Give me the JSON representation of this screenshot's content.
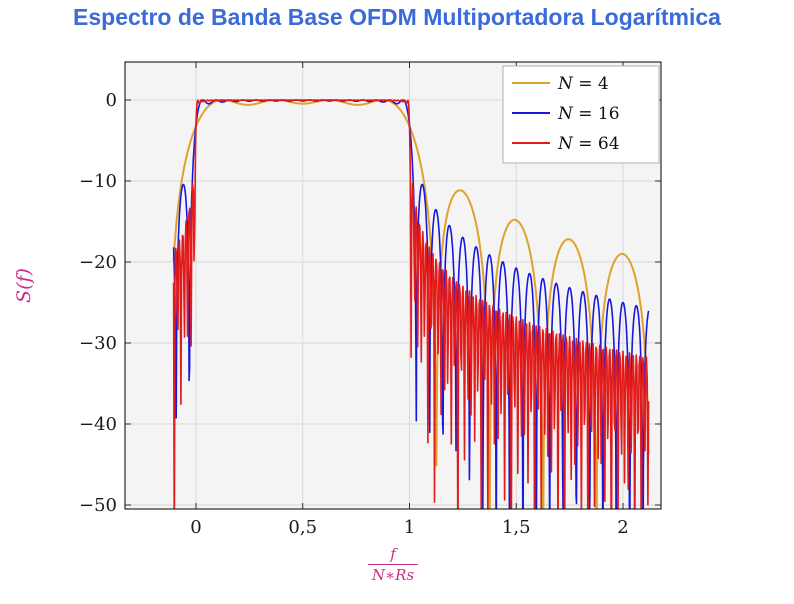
{
  "title": "Espectro de Banda Base OFDM Multiportadora Logarítmica",
  "colors": {
    "title": "#3b6bd6",
    "axis_label": "#cf2e86",
    "grid": "#d9d9d9",
    "plot_bg": "#f4f4f4",
    "axis": "#000000",
    "tick_text": "#1a1a1a",
    "legend_border": "#b0b0b0",
    "legend_bg": "#ffffff"
  },
  "chart_data": {
    "type": "line",
    "title": "Espectro de Banda Base OFDM Multiportadora Logarítmica",
    "xlabel": "f/(N*Rs)",
    "xlabel_numerator": "f",
    "xlabel_denominator": "N∗Rs",
    "ylabel": "S(f)",
    "xlim": [
      -0.33,
      2.18
    ],
    "ylim": [
      -50.5,
      4.7
    ],
    "domain": [
      -0.105,
      2.12
    ],
    "grid": true,
    "x_ticks": [
      {
        "v": 0,
        "label": "0"
      },
      {
        "v": 0.5,
        "label": "0,5"
      },
      {
        "v": 1,
        "label": "1"
      },
      {
        "v": 1.5,
        "label": "1,5"
      },
      {
        "v": 2,
        "label": "2"
      }
    ],
    "y_ticks": [
      {
        "v": 0,
        "label": "0"
      },
      {
        "v": -10,
        "label": "−10"
      },
      {
        "v": -20,
        "label": "−20"
      },
      {
        "v": -30,
        "label": "−30"
      },
      {
        "v": -40,
        "label": "−40"
      },
      {
        "v": -50,
        "label": "−50"
      }
    ],
    "legend": {
      "position": "top-right",
      "entries": [
        "N = 4",
        "N = 16",
        "N = 64"
      ]
    },
    "function": "S_dB(x) = 10*log10( sum_{k=0}^{N-1} sinc^2(N*x - k - 0.5) ), sinc(u)=sin(pi*u)/(pi*u), x = f/(N*Rs); flat 0 dB passband over 0<=x<=1, sinc sidelobes decaying beyond",
    "series": [
      {
        "name": "N = 4",
        "N": 4,
        "color": "#e0a22e",
        "samples": 900
      },
      {
        "name": "N = 16",
        "N": 16,
        "color": "#1818dd",
        "samples": 1100
      },
      {
        "name": "N = 64",
        "N": 64,
        "color": "#e21b1b",
        "samples": 650
      }
    ]
  }
}
